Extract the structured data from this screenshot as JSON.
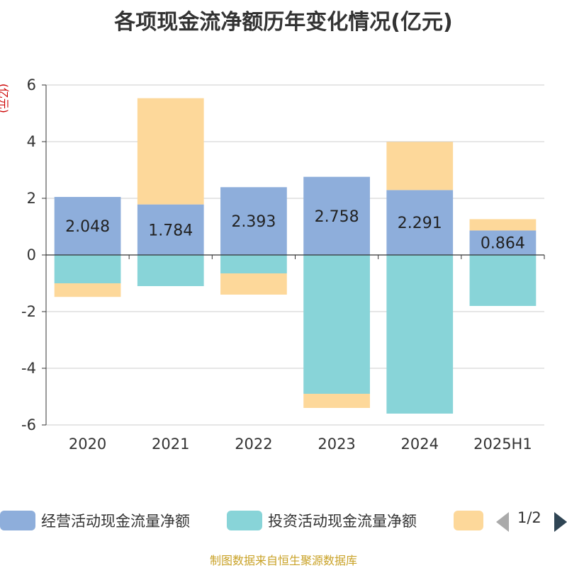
{
  "title": "各项现金流净额历年变化情况(亿元)",
  "unit": "(亿元)",
  "source": "制图数据来自恒生聚源数据库",
  "legend": {
    "items": [
      {
        "label": "经营活动现金流量净额",
        "color": "#8eaedb"
      },
      {
        "label": "投资活动现金流量净额",
        "color": "#88d4d8"
      },
      {
        "label": "",
        "color": "#fdd89a"
      }
    ],
    "page": "1/2"
  },
  "chart_data": {
    "type": "bar",
    "stacked": true,
    "categories": [
      "2020",
      "2021",
      "2022",
      "2023",
      "2024",
      "2025H1"
    ],
    "ylim": [
      -6,
      6
    ],
    "yticks": [
      -6,
      -4,
      -2,
      0,
      2,
      4,
      6
    ],
    "grid": true,
    "series": [
      {
        "name": "经营活动现金流量净额",
        "color": "#8eaedb",
        "values": [
          2.048,
          1.784,
          2.393,
          2.758,
          2.291,
          0.864
        ],
        "labels": [
          "2.048",
          "1.784",
          "2.393",
          "2.758",
          "2.291",
          "0.864"
        ]
      },
      {
        "name": "投资活动现金流量净额",
        "color": "#88d4d8",
        "values": [
          -1.0,
          -1.1,
          -0.65,
          -4.9,
          -5.6,
          -1.8
        ]
      },
      {
        "name": "",
        "color": "#fdd89a",
        "values": [
          -0.48,
          3.75,
          -0.75,
          -0.5,
          1.7,
          0.4
        ]
      }
    ]
  }
}
